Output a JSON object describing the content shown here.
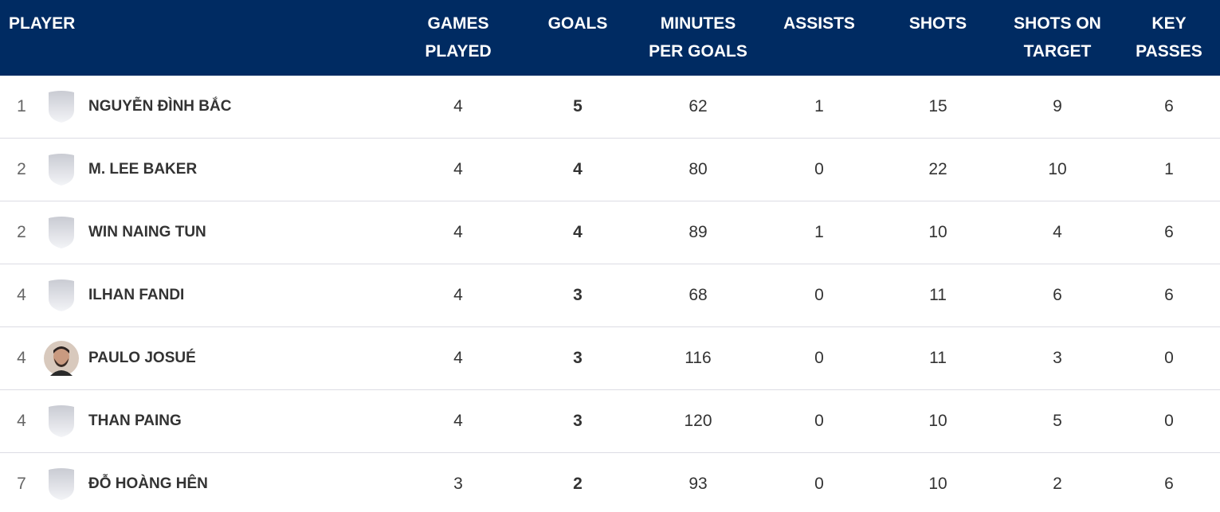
{
  "table": {
    "headers": [
      [
        "PLAYER"
      ],
      [
        "GAMES",
        "PLAYED"
      ],
      [
        "GOALS"
      ],
      [
        "MINUTES",
        "PER GOALS"
      ],
      [
        "ASSISTS"
      ],
      [
        "SHOTS"
      ],
      [
        "SHOTS ON",
        "TARGET"
      ],
      [
        "KEY",
        "PASSES"
      ]
    ],
    "rows": [
      [
        "1",
        "NGUYỄN ĐÌNH BẮC",
        "4",
        "5",
        "62",
        "1",
        "15",
        "9",
        "6"
      ],
      [
        "2",
        "M. LEE BAKER",
        "4",
        "4",
        "80",
        "0",
        "22",
        "10",
        "1"
      ],
      [
        "2",
        "WIN NAING TUN",
        "4",
        "4",
        "89",
        "1",
        "10",
        "4",
        "6"
      ],
      [
        "4",
        "ILHAN FANDI",
        "4",
        "3",
        "68",
        "0",
        "11",
        "6",
        "6"
      ],
      [
        "4",
        "PAULO JOSUÉ",
        "4",
        "3",
        "116",
        "0",
        "11",
        "3",
        "0"
      ],
      [
        "4",
        "THAN PAING",
        "4",
        "3",
        "120",
        "0",
        "10",
        "5",
        "0"
      ],
      [
        "7",
        "ĐỖ HOÀNG HÊN",
        "3",
        "2",
        "93",
        "0",
        "10",
        "2",
        "6"
      ]
    ]
  }
}
